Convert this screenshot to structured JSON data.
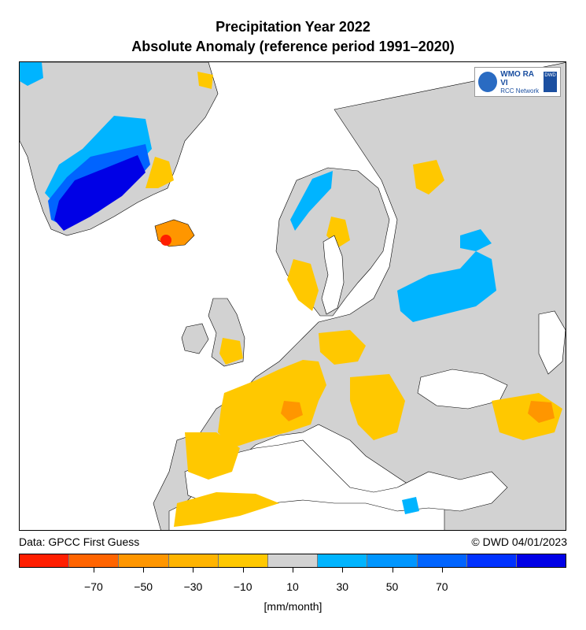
{
  "title": {
    "line1": "Precipitation Year 2022",
    "line2": "Absolute Anomaly (reference period 1991–2020)"
  },
  "source": {
    "left": "Data: GPCC First Guess",
    "right": "© DWD 04/01/2023"
  },
  "logo": {
    "name": "WMO RA VI",
    "network": "RCC Network",
    "agency": "DWD"
  },
  "legend": {
    "unit": "[mm/month]",
    "colors": [
      "#ff1e00",
      "#ff6400",
      "#ff9600",
      "#ffb400",
      "#ffc800",
      "#d2d2d2",
      "#00b4ff",
      "#0096ff",
      "#0064ff",
      "#0032ff",
      "#0000e6"
    ],
    "tick_labels": [
      "−70",
      "−50",
      "−30",
      "−10",
      "10",
      "30",
      "50",
      "70"
    ],
    "tick_values": [
      -70,
      -50,
      -30,
      -10,
      10,
      30,
      50,
      70
    ]
  },
  "map": {
    "region": "Europe",
    "legend_placement": "bottom",
    "land_color": "#d2d2d2",
    "sea_color": "#ffffff"
  }
}
